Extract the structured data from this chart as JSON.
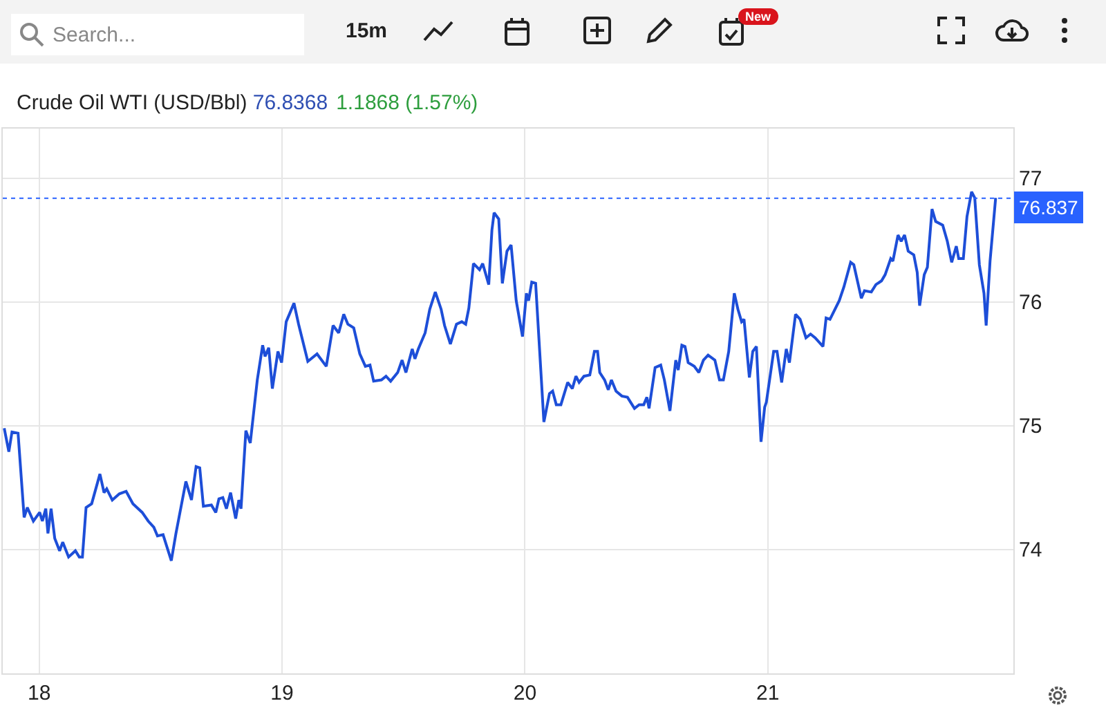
{
  "chart_data": {
    "type": "line",
    "title": "Crude Oil WTI (USD/Bbl)",
    "annotations": [
      "76.8368",
      "1.1868 (1.57%)",
      "Search...",
      "15m",
      "New"
    ],
    "x": [
      17.856,
      17.875,
      17.888,
      17.913,
      17.938,
      17.951,
      17.976,
      18.002,
      18.013,
      18.027,
      18.036,
      18.049,
      18.064,
      18.084,
      18.097,
      18.121,
      18.149,
      18.165,
      18.178,
      18.193,
      18.216,
      18.25,
      18.267,
      18.278,
      18.301,
      18.33,
      18.358,
      18.386,
      18.424,
      18.449,
      18.472,
      18.487,
      18.51,
      18.544,
      18.563,
      18.604,
      18.627,
      18.646,
      18.661,
      18.676,
      18.709,
      18.727,
      18.74,
      18.756,
      18.771,
      18.788,
      18.809,
      18.822,
      18.831,
      18.851,
      18.869,
      18.898,
      18.92,
      18.93,
      18.945,
      18.96,
      18.983,
      18.998,
      19.017,
      19.03,
      19.049,
      19.068,
      19.106,
      19.144,
      19.182,
      19.21,
      19.233,
      19.254,
      19.271,
      19.295,
      19.32,
      19.343,
      19.362,
      19.377,
      19.409,
      19.428,
      19.447,
      19.476,
      19.494,
      19.51,
      19.536,
      19.547,
      19.561,
      19.589,
      19.608,
      19.631,
      19.655,
      19.669,
      19.693,
      19.718,
      19.74,
      19.756,
      19.769,
      19.788,
      19.813,
      19.826,
      19.851,
      19.864,
      19.873,
      19.892,
      19.907,
      19.926,
      19.943,
      19.964,
      19.99,
      20.006,
      20.015,
      20.028,
      20.044,
      20.078,
      20.101,
      20.114,
      20.129,
      20.148,
      20.176,
      20.195,
      20.21,
      20.223,
      20.243,
      20.267,
      20.286,
      20.299,
      20.308,
      20.328,
      20.343,
      20.356,
      20.375,
      20.399,
      20.422,
      20.451,
      20.47,
      20.489,
      20.502,
      20.511,
      20.536,
      20.559,
      20.574,
      20.597,
      20.621,
      20.631,
      20.646,
      20.659,
      20.672,
      20.697,
      20.716,
      20.735,
      20.754,
      20.782,
      20.801,
      20.817,
      20.839,
      20.862,
      20.877,
      20.892,
      20.902,
      20.924,
      20.938,
      20.953,
      20.972,
      20.987,
      20.994,
      21.024,
      21.038,
      21.057,
      21.076,
      21.089,
      21.114,
      21.133,
      21.157,
      21.176,
      21.195,
      21.227,
      21.24,
      21.256,
      21.294,
      21.313,
      21.341,
      21.354,
      21.385,
      21.398,
      21.426,
      21.445,
      21.468,
      21.483,
      21.506,
      21.515,
      21.536,
      21.549,
      21.563,
      21.578,
      21.601,
      21.615,
      21.625,
      21.644,
      21.657,
      21.676,
      21.691,
      21.72,
      21.739,
      21.757,
      21.776,
      21.786,
      21.805,
      21.82,
      21.839,
      21.852,
      21.871,
      21.89,
      21.899,
      21.915,
      21.938
    ],
    "values": [
      74.98,
      74.79,
      74.95,
      74.94,
      74.26,
      74.34,
      74.23,
      74.3,
      74.23,
      74.33,
      74.13,
      74.33,
      74.09,
      73.99,
      74.06,
      73.94,
      73.99,
      73.94,
      73.94,
      74.34,
      74.37,
      74.61,
      74.46,
      74.49,
      74.4,
      74.45,
      74.47,
      74.37,
      74.3,
      74.23,
      74.18,
      74.11,
      74.12,
      73.91,
      74.13,
      74.55,
      74.4,
      74.67,
      74.66,
      74.35,
      74.36,
      74.3,
      74.41,
      74.42,
      74.33,
      74.46,
      74.25,
      74.4,
      74.33,
      74.96,
      74.86,
      75.37,
      75.65,
      75.56,
      75.63,
      75.3,
      75.6,
      75.51,
      75.84,
      75.9,
      75.99,
      75.82,
      75.52,
      75.58,
      75.48,
      75.81,
      75.75,
      75.9,
      75.82,
      75.79,
      75.58,
      75.48,
      75.49,
      75.36,
      75.37,
      75.4,
      75.36,
      75.43,
      75.53,
      75.43,
      75.62,
      75.54,
      75.62,
      75.75,
      75.94,
      76.08,
      75.94,
      75.81,
      75.66,
      75.82,
      75.84,
      75.82,
      75.95,
      76.31,
      76.26,
      76.31,
      76.14,
      76.58,
      76.72,
      76.67,
      76.15,
      76.41,
      76.46,
      76.01,
      75.72,
      76.07,
      76.01,
      76.16,
      76.15,
      75.03,
      75.26,
      75.28,
      75.17,
      75.17,
      75.35,
      75.3,
      75.4,
      75.35,
      75.4,
      75.41,
      75.6,
      75.6,
      75.43,
      75.37,
      75.29,
      75.37,
      75.28,
      75.24,
      75.23,
      75.14,
      75.17,
      75.17,
      75.23,
      75.14,
      75.47,
      75.49,
      75.37,
      75.12,
      75.53,
      75.45,
      75.65,
      75.64,
      75.51,
      75.48,
      75.43,
      75.53,
      75.57,
      75.53,
      75.37,
      75.37,
      75.6,
      76.07,
      75.94,
      75.84,
      75.86,
      75.39,
      75.6,
      75.64,
      74.87,
      75.15,
      75.19,
      75.6,
      75.6,
      75.35,
      75.62,
      75.51,
      75.9,
      75.86,
      75.71,
      75.74,
      75.71,
      75.64,
      75.87,
      75.86,
      76.01,
      76.12,
      76.32,
      76.3,
      76.03,
      76.09,
      76.08,
      76.14,
      76.17,
      76.22,
      76.35,
      76.33,
      76.54,
      76.49,
      76.54,
      76.41,
      76.38,
      76.24,
      75.97,
      76.22,
      76.28,
      76.75,
      76.65,
      76.62,
      76.49,
      76.32,
      76.45,
      76.35,
      76.35,
      76.69,
      76.89,
      76.84,
      76.3,
      76.07,
      75.81,
      76.33,
      76.84
    ],
    "color": "#1d4ed8",
    "xlim": [
      17.85,
      22.011
    ],
    "xticks": [
      18,
      19,
      20,
      21
    ],
    "ylim": [
      73,
      77.4
    ],
    "yticks": [
      74,
      75,
      76,
      77
    ],
    "grid": true,
    "ref_lines": [
      {
        "axis": "y",
        "value": 76.837,
        "label": "76.837",
        "color": "#2962ff",
        "line_style": "dotted"
      }
    ]
  }
}
